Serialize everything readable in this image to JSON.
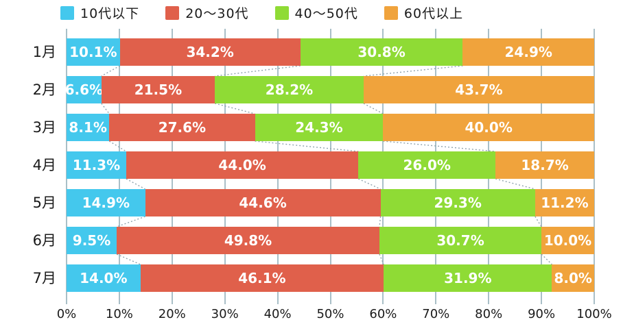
{
  "legend": {
    "items": [
      {
        "label": "10代以下",
        "color": "#44c8ed"
      },
      {
        "label": "20〜30代",
        "color": "#e0604b"
      },
      {
        "label": "40〜50代",
        "color": "#8fdb35"
      },
      {
        "label": "60代以上",
        "color": "#f0a33c"
      }
    ]
  },
  "chart_data": {
    "type": "bar",
    "orientation": "horizontal",
    "stacked": true,
    "title": "",
    "xlabel": "",
    "ylabel": "",
    "xlim": [
      0,
      100
    ],
    "grid": true,
    "legend_position": "top",
    "categories": [
      "1月",
      "2月",
      "3月",
      "4月",
      "5月",
      "6月",
      "7月"
    ],
    "series": [
      {
        "name": "10代以下",
        "color": "#44c8ed",
        "values": [
          10.1,
          6.6,
          8.1,
          11.3,
          14.9,
          9.5,
          14.0
        ]
      },
      {
        "name": "20〜30代",
        "color": "#e0604b",
        "values": [
          34.2,
          21.5,
          27.6,
          44.0,
          44.6,
          49.8,
          46.1
        ]
      },
      {
        "name": "40〜50代",
        "color": "#8fdb35",
        "values": [
          30.8,
          28.2,
          24.3,
          26.0,
          29.3,
          30.7,
          31.9
        ]
      },
      {
        "name": "60代以上",
        "color": "#f0a33c",
        "values": [
          24.9,
          43.7,
          40.0,
          18.7,
          11.2,
          10.0,
          8.0
        ]
      }
    ],
    "data_label_suffix": "%",
    "data_label_color": "#ffffff",
    "x_ticks": [
      "0%",
      "10%",
      "20%",
      "30%",
      "40%",
      "50%",
      "60%",
      "70%",
      "80%",
      "90%",
      "100%"
    ],
    "gridline_color": "#a9bfc7",
    "connector_line_color": "#8fa3ad"
  }
}
